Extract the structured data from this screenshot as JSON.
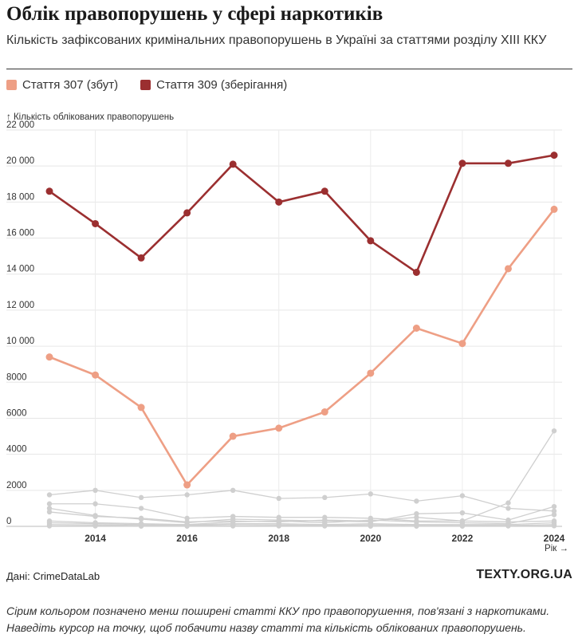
{
  "header": {
    "title": "Облік правопорушень у сфері наркотиків",
    "subtitle": "Кількість зафіксованих кримінальних правопорушень в Україні за статтями розділу XIII ККУ"
  },
  "legend": [
    {
      "label": "Стаття 307 (збут)",
      "color": "#ee9f85"
    },
    {
      "label": "Стаття 309 (зберігання)",
      "color": "#9b2f30"
    }
  ],
  "footer": {
    "source": "Дані: CrimeDataLab",
    "brand": "TEXTY.ORG.UA",
    "note": "Сірим кольором позначено менш поширені статті ККУ про правопорушення, пов'язані з наркотиками. Наведіть курсор на точку, щоб побачити назву статті та кількість облікованих правопорушень."
  },
  "chart_data": {
    "type": "line",
    "ylabel": "↑ Кількість облікованих правопорушень",
    "xlabel": "Рік →",
    "ylim": [
      0,
      22000
    ],
    "xlim": [
      2013,
      2024
    ],
    "y_ticks": [
      0,
      2000,
      4000,
      6000,
      8000,
      10000,
      12000,
      14000,
      16000,
      18000,
      20000,
      22000
    ],
    "y_tick_labels": [
      "0",
      "2000",
      "4000",
      "6000",
      "8000",
      "10 000",
      "12 000",
      "14 000",
      "16 000",
      "18 000",
      "20 000",
      "22 000"
    ],
    "x_ticks": [
      2014,
      2016,
      2018,
      2020,
      2022,
      2024
    ],
    "x": [
      2013,
      2014,
      2015,
      2016,
      2017,
      2018,
      2019,
      2020,
      2021,
      2022,
      2023,
      2024
    ],
    "grid": true,
    "series": [
      {
        "name": "Стаття 307 (збут)",
        "color": "#ee9f85",
        "values": [
          9400,
          8400,
          6600,
          2300,
          5000,
          5450,
          6350,
          8500,
          11000,
          10150,
          14300,
          17600
        ]
      },
      {
        "name": "Стаття 309 (зберігання)",
        "color": "#9b2f30",
        "values": [
          18600,
          16800,
          14900,
          17400,
          20100,
          18000,
          18600,
          15850,
          14100,
          20150,
          20150,
          20600
        ]
      },
      {
        "color": "#cfcfcf",
        "values": [
          1750,
          2000,
          1600,
          1750,
          2000,
          1550,
          1600,
          1800,
          1400,
          1700,
          1000,
          850
        ]
      },
      {
        "color": "#cfcfcf",
        "values": [
          1250,
          1250,
          1000,
          450,
          550,
          500,
          500,
          450,
          300,
          300,
          1300,
          5300
        ]
      },
      {
        "color": "#cfcfcf",
        "values": [
          1000,
          600,
          400,
          200,
          400,
          350,
          300,
          250,
          700,
          750,
          350,
          1100
        ]
      },
      {
        "color": "#cfcfcf",
        "values": [
          800,
          550,
          450,
          250,
          300,
          250,
          350,
          300,
          500,
          300,
          250,
          300
        ]
      },
      {
        "color": "#cfcfcf",
        "values": [
          300,
          200,
          150,
          100,
          250,
          300,
          200,
          350,
          250,
          200,
          150,
          650
        ]
      },
      {
        "color": "#cfcfcf",
        "values": [
          200,
          150,
          100,
          80,
          150,
          150,
          100,
          150,
          100,
          100,
          100,
          200
        ]
      },
      {
        "color": "#cfcfcf",
        "values": [
          100,
          80,
          50,
          40,
          100,
          80,
          60,
          80,
          60,
          50,
          50,
          100
        ]
      },
      {
        "color": "#cfcfcf",
        "values": [
          20,
          20,
          10,
          10,
          20,
          20,
          20,
          10,
          10,
          10,
          20,
          30
        ]
      }
    ]
  }
}
